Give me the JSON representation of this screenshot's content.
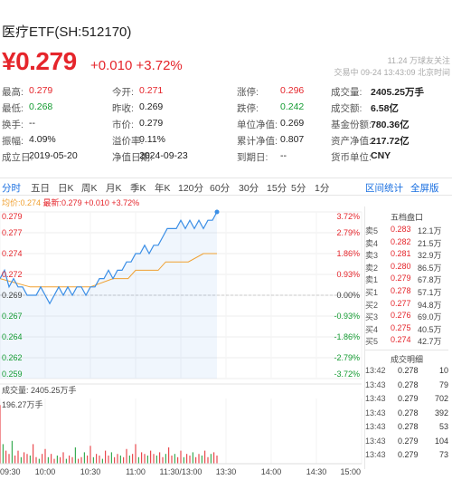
{
  "header": {
    "title": "医疗ETF(SH:512170)",
    "price": "¥0.279",
    "change": "+0.010 +3.72%",
    "followers": "11.24 万球友关注",
    "trade_time": "交易中 09-24 13:43:09 北京时间"
  },
  "stats": [
    [
      {
        "label": "最高:",
        "value": "0.279",
        "tone": "red"
      },
      {
        "label": "今开:",
        "value": "0.271",
        "tone": "red"
      },
      {
        "label": "涨停:",
        "value": "0.296",
        "tone": "red"
      },
      {
        "label": "成交量:",
        "value": "2405.25万手",
        "tone": "bold"
      }
    ],
    [
      {
        "label": "最低:",
        "value": "0.268",
        "tone": "green"
      },
      {
        "label": "昨收:",
        "value": "0.269",
        "tone": ""
      },
      {
        "label": "跌停:",
        "value": "0.242",
        "tone": "green"
      },
      {
        "label": "成交额:",
        "value": "6.58亿",
        "tone": "bold"
      }
    ],
    [
      {
        "label": "换手:",
        "value": "--",
        "tone": ""
      },
      {
        "label": "市价:",
        "value": "0.279",
        "tone": ""
      },
      {
        "label": "单位净值:",
        "value": "0.269",
        "tone": ""
      },
      {
        "label": "基金份额:",
        "value": "780.36亿",
        "tone": "bold"
      }
    ],
    [
      {
        "label": "振幅:",
        "value": "4.09%",
        "tone": ""
      },
      {
        "label": "溢价率:",
        "value": "0.11%",
        "tone": ""
      },
      {
        "label": "累计净值:",
        "value": "0.807",
        "tone": ""
      },
      {
        "label": "资产净值:",
        "value": "217.72亿",
        "tone": "bold"
      }
    ],
    [
      {
        "label": "成立日:",
        "value": "2019-05-20",
        "tone": ""
      },
      {
        "label": "净值日期:",
        "value": "2024-09-23",
        "tone": ""
      },
      {
        "label": "到期日:",
        "value": "--",
        "tone": ""
      },
      {
        "label": "货币单位:",
        "value": "CNY",
        "tone": "bold"
      }
    ]
  ],
  "tabs": [
    "分时",
    "五日",
    "日K",
    "周K",
    "月K",
    "季K",
    "年K",
    "120分",
    "60分",
    "30分",
    "15分",
    "5分",
    "1分"
  ],
  "links": {
    "interval_stats": "区间统计",
    "fullscreen": "全屏版"
  },
  "legend": {
    "avg": "均价:0.274",
    "latest": "最新:0.279 +0.010 +3.72%"
  },
  "price_axis": [
    "0.279",
    "0.277",
    "0.274",
    "0.272",
    "0.269",
    "0.267",
    "0.264",
    "0.262",
    "0.259"
  ],
  "pct_axis": [
    "3.72%",
    "2.79%",
    "1.86%",
    "0.93%",
    "0.00%",
    "-0.93%",
    "-1.86%",
    "-2.79%",
    "-3.72%"
  ],
  "volume": {
    "label": "成交量: 2405.25万手",
    "max": "196.27万手"
  },
  "time_axis": [
    "09:30",
    "10:00",
    "10:30",
    "11:00",
    "11:30/13:00",
    "13:30",
    "14:00",
    "14:30",
    "15:00"
  ],
  "order_book": {
    "title": "五档盘口",
    "levels": [
      {
        "side": "卖5",
        "price": "0.283",
        "vol": "12.1万"
      },
      {
        "side": "卖4",
        "price": "0.282",
        "vol": "21.5万"
      },
      {
        "side": "卖3",
        "price": "0.281",
        "vol": "32.9万"
      },
      {
        "side": "卖2",
        "price": "0.280",
        "vol": "86.5万"
      },
      {
        "side": "卖1",
        "price": "0.279",
        "vol": "67.8万"
      },
      {
        "side": "买1",
        "price": "0.278",
        "vol": "57.1万"
      },
      {
        "side": "买2",
        "price": "0.277",
        "vol": "94.8万"
      },
      {
        "side": "买3",
        "price": "0.276",
        "vol": "69.0万"
      },
      {
        "side": "买4",
        "price": "0.275",
        "vol": "40.5万"
      },
      {
        "side": "买5",
        "price": "0.274",
        "vol": "42.7万"
      }
    ]
  },
  "trades": {
    "title": "成交明细",
    "rows": [
      {
        "time": "13:42",
        "price": "0.278",
        "vol": "10",
        "color": "green"
      },
      {
        "time": "13:43",
        "price": "0.278",
        "vol": "79",
        "color": "green"
      },
      {
        "time": "13:43",
        "price": "0.279",
        "vol": "702",
        "color": "red"
      },
      {
        "time": "13:43",
        "price": "0.278",
        "vol": "392",
        "color": "green"
      },
      {
        "time": "13:43",
        "price": "0.278",
        "vol": "53",
        "color": "green"
      },
      {
        "time": "13:43",
        "price": "0.279",
        "vol": "104",
        "color": "red"
      },
      {
        "time": "13:43",
        "price": "0.279",
        "vol": "73",
        "color": "red"
      }
    ]
  },
  "colors": {
    "up": "#e5252b",
    "down": "#139b31",
    "line": "#3a8ee6",
    "avg": "#f0a030",
    "link": "#1a6fe0"
  },
  "chart_data": {
    "type": "line",
    "x_unit": "minute of trading session (0 = 09:30, 120 = 11:30/13:00, 240 = 15:00)",
    "price_series": [
      [
        0,
        0.271
      ],
      [
        3,
        0.272
      ],
      [
        6,
        0.27
      ],
      [
        9,
        0.271
      ],
      [
        12,
        0.27
      ],
      [
        15,
        0.27
      ],
      [
        18,
        0.269
      ],
      [
        21,
        0.269
      ],
      [
        24,
        0.269
      ],
      [
        27,
        0.27
      ],
      [
        30,
        0.269
      ],
      [
        33,
        0.268
      ],
      [
        36,
        0.269
      ],
      [
        39,
        0.27
      ],
      [
        42,
        0.269
      ],
      [
        45,
        0.27
      ],
      [
        48,
        0.269
      ],
      [
        51,
        0.27
      ],
      [
        54,
        0.27
      ],
      [
        57,
        0.269
      ],
      [
        60,
        0.27
      ],
      [
        63,
        0.27
      ],
      [
        66,
        0.271
      ],
      [
        69,
        0.271
      ],
      [
        72,
        0.272
      ],
      [
        75,
        0.271
      ],
      [
        78,
        0.272
      ],
      [
        81,
        0.272
      ],
      [
        84,
        0.273
      ],
      [
        87,
        0.273
      ],
      [
        90,
        0.274
      ],
      [
        93,
        0.274
      ],
      [
        96,
        0.275
      ],
      [
        99,
        0.274
      ],
      [
        102,
        0.275
      ],
      [
        105,
        0.275
      ],
      [
        108,
        0.276
      ],
      [
        111,
        0.277
      ],
      [
        114,
        0.277
      ],
      [
        117,
        0.277
      ],
      [
        120,
        0.278
      ],
      [
        123,
        0.277
      ],
      [
        126,
        0.278
      ],
      [
        129,
        0.277
      ],
      [
        132,
        0.278
      ],
      [
        135,
        0.277
      ],
      [
        138,
        0.278
      ],
      [
        141,
        0.278
      ],
      [
        144,
        0.279
      ]
    ],
    "avg_series": [
      [
        0,
        0.271
      ],
      [
        20,
        0.27
      ],
      [
        40,
        0.27
      ],
      [
        60,
        0.27
      ],
      [
        75,
        0.271
      ],
      [
        85,
        0.271
      ],
      [
        90,
        0.272
      ],
      [
        105,
        0.272
      ],
      [
        110,
        0.273
      ],
      [
        125,
        0.273
      ],
      [
        135,
        0.274
      ],
      [
        144,
        0.274
      ]
    ],
    "volume_series": [
      [
        0,
        180
      ],
      [
        2,
        60
      ],
      [
        4,
        40
      ],
      [
        6,
        30
      ],
      [
        8,
        70
      ],
      [
        10,
        25
      ],
      [
        12,
        40
      ],
      [
        14,
        20
      ],
      [
        16,
        35
      ],
      [
        18,
        30
      ],
      [
        20,
        25
      ],
      [
        22,
        60
      ],
      [
        24,
        20
      ],
      [
        26,
        15
      ],
      [
        28,
        30
      ],
      [
        30,
        45
      ],
      [
        32,
        20
      ],
      [
        34,
        30
      ],
      [
        36,
        15
      ],
      [
        38,
        25
      ],
      [
        40,
        20
      ],
      [
        42,
        35
      ],
      [
        44,
        15
      ],
      [
        46,
        25
      ],
      [
        48,
        20
      ],
      [
        50,
        50
      ],
      [
        52,
        15
      ],
      [
        54,
        20
      ],
      [
        56,
        35
      ],
      [
        58,
        25
      ],
      [
        60,
        55
      ],
      [
        62,
        20
      ],
      [
        64,
        30
      ],
      [
        66,
        25
      ],
      [
        68,
        15
      ],
      [
        70,
        40
      ],
      [
        72,
        25
      ],
      [
        74,
        35
      ],
      [
        76,
        20
      ],
      [
        78,
        30
      ],
      [
        80,
        25
      ],
      [
        82,
        20
      ],
      [
        84,
        45
      ],
      [
        86,
        25
      ],
      [
        88,
        30
      ],
      [
        90,
        60
      ],
      [
        92,
        20
      ],
      [
        94,
        35
      ],
      [
        96,
        30
      ],
      [
        98,
        25
      ],
      [
        100,
        40
      ],
      [
        102,
        30
      ],
      [
        104,
        25
      ],
      [
        106,
        35
      ],
      [
        108,
        20
      ],
      [
        110,
        30
      ],
      [
        112,
        50
      ],
      [
        114,
        25
      ],
      [
        116,
        30
      ],
      [
        118,
        20
      ],
      [
        120,
        40
      ],
      [
        122,
        20
      ],
      [
        124,
        30
      ],
      [
        126,
        25
      ],
      [
        128,
        35
      ],
      [
        130,
        20
      ],
      [
        132,
        30
      ],
      [
        134,
        25
      ],
      [
        136,
        40
      ],
      [
        138,
        20
      ],
      [
        140,
        30
      ],
      [
        142,
        35
      ],
      [
        144,
        25
      ]
    ],
    "ylim": [
      0.259,
      0.279
    ],
    "grid": true
  }
}
